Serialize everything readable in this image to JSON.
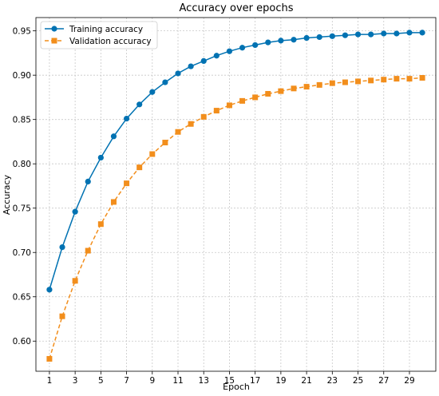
{
  "chart_data": {
    "type": "line",
    "title": "Accuracy over epochs",
    "xlabel": "Epoch",
    "ylabel": "Accuracy",
    "xlim": [
      -0.05,
      31.05
    ],
    "ylim": [
      0.566,
      0.965
    ],
    "x_ticks": [
      1,
      3,
      5,
      7,
      9,
      11,
      13,
      15,
      17,
      19,
      21,
      23,
      25,
      27,
      29
    ],
    "y_ticks": [
      0.6,
      0.65,
      0.7,
      0.75,
      0.8,
      0.85,
      0.9,
      0.95
    ],
    "grid": true,
    "legend_position": "upper-left",
    "x": [
      1,
      2,
      3,
      4,
      5,
      6,
      7,
      8,
      9,
      10,
      11,
      12,
      13,
      14,
      15,
      16,
      17,
      18,
      19,
      20,
      21,
      22,
      23,
      24,
      25,
      26,
      27,
      28,
      29,
      30
    ],
    "series": [
      {
        "name": "Training accuracy",
        "color": "#0072b2",
        "marker": "circle",
        "linestyle": "solid",
        "values": [
          0.658,
          0.706,
          0.746,
          0.78,
          0.807,
          0.831,
          0.851,
          0.867,
          0.881,
          0.892,
          0.902,
          0.91,
          0.916,
          0.922,
          0.927,
          0.931,
          0.934,
          0.937,
          0.939,
          0.94,
          0.942,
          0.943,
          0.944,
          0.945,
          0.946,
          0.946,
          0.947,
          0.947,
          0.948,
          0.948
        ]
      },
      {
        "name": "Validation accuracy",
        "color": "#f28e1c",
        "marker": "square",
        "linestyle": "dashed",
        "values": [
          0.58,
          0.628,
          0.668,
          0.702,
          0.732,
          0.757,
          0.778,
          0.796,
          0.811,
          0.824,
          0.836,
          0.845,
          0.853,
          0.86,
          0.866,
          0.871,
          0.875,
          0.879,
          0.882,
          0.885,
          0.887,
          0.889,
          0.891,
          0.892,
          0.893,
          0.894,
          0.895,
          0.896,
          0.896,
          0.897
        ]
      }
    ]
  }
}
